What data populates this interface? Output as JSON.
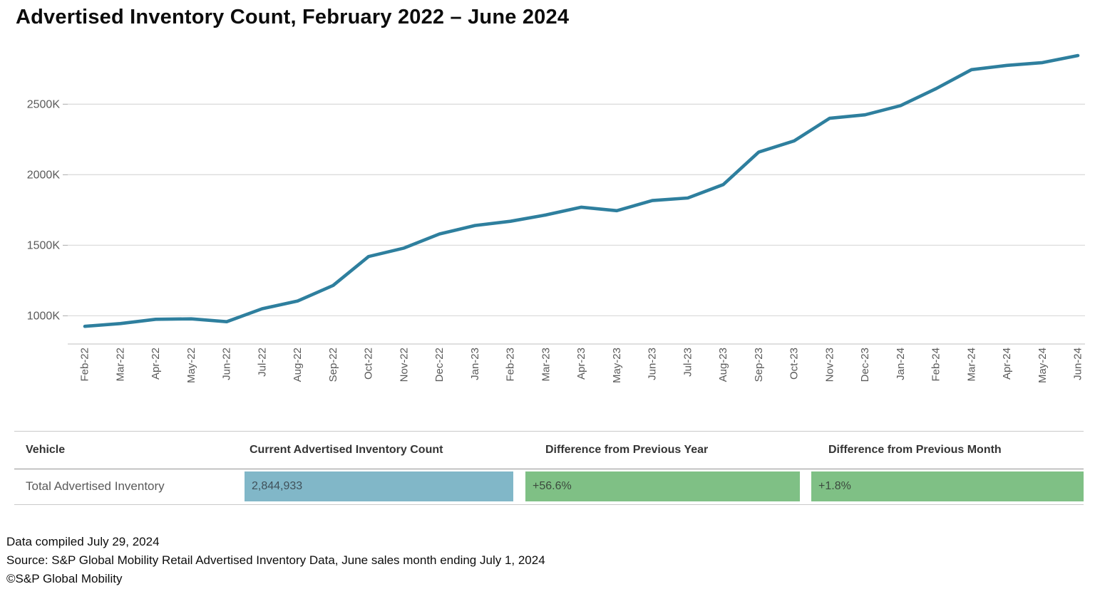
{
  "title": "Advertised Inventory Count, February 2022 – June 2024",
  "chart_data": {
    "type": "line",
    "title": "Advertised Inventory Count, February 2022 – June 2024",
    "xlabel": "",
    "ylabel": "",
    "unit": "thousands of vehicles",
    "x": [
      "Feb-22",
      "Mar-22",
      "Apr-22",
      "May-22",
      "Jun-22",
      "Jul-22",
      "Aug-22",
      "Sep-22",
      "Oct-22",
      "Nov-22",
      "Dec-22",
      "Jan-23",
      "Feb-23",
      "Mar-23",
      "Apr-23",
      "May-23",
      "Jun-23",
      "Jul-23",
      "Aug-23",
      "Sep-23",
      "Oct-23",
      "Nov-23",
      "Dec-23",
      "Jan-24",
      "Feb-24",
      "Mar-24",
      "Apr-24",
      "May-24",
      "Jun-24"
    ],
    "series": [
      {
        "name": "Total Advertised Inventory",
        "values": [
          925,
          945,
          975,
          978,
          958,
          1050,
          1105,
          1215,
          1420,
          1480,
          1580,
          1640,
          1670,
          1715,
          1770,
          1745,
          1817,
          1835,
          1930,
          2160,
          2240,
          2400,
          2425,
          2490,
          2610,
          2745,
          2775,
          2795,
          2845
        ]
      }
    ],
    "yticks": [
      {
        "value": 1000,
        "label": "1000K"
      },
      {
        "value": 1500,
        "label": "1500K"
      },
      {
        "value": 2000,
        "label": "2000K"
      },
      {
        "value": 2500,
        "label": "2500K"
      }
    ],
    "ylim": [
      800,
      2860
    ],
    "grid": true,
    "legend_position": "none",
    "line_color": "#2E7F9E",
    "gridline_color": "#dcdcdc",
    "axis_line_color": "#cccccc",
    "tick_label_color": "#5a5a5a"
  },
  "table": {
    "headers": {
      "vehicle": "Vehicle",
      "count": "Current Advertised Inventory Count",
      "diff_year": "Difference from Previous Year",
      "diff_month": "Difference from Previous Month"
    },
    "row": {
      "vehicle": "Total Advertised Inventory",
      "count": "2,844,933",
      "diff_year": "+56.6%",
      "diff_month": "+1.8%"
    },
    "colors": {
      "count_cell": "#81B7C8",
      "diff_cell": "#7FC085"
    }
  },
  "footer": {
    "compiled": "Data compiled July 29, 2024",
    "source": "Source: S&P Global Mobility Retail Advertised Inventory Data, June sales month ending July 1, 2024",
    "copyright": "©S&P Global Mobility"
  }
}
